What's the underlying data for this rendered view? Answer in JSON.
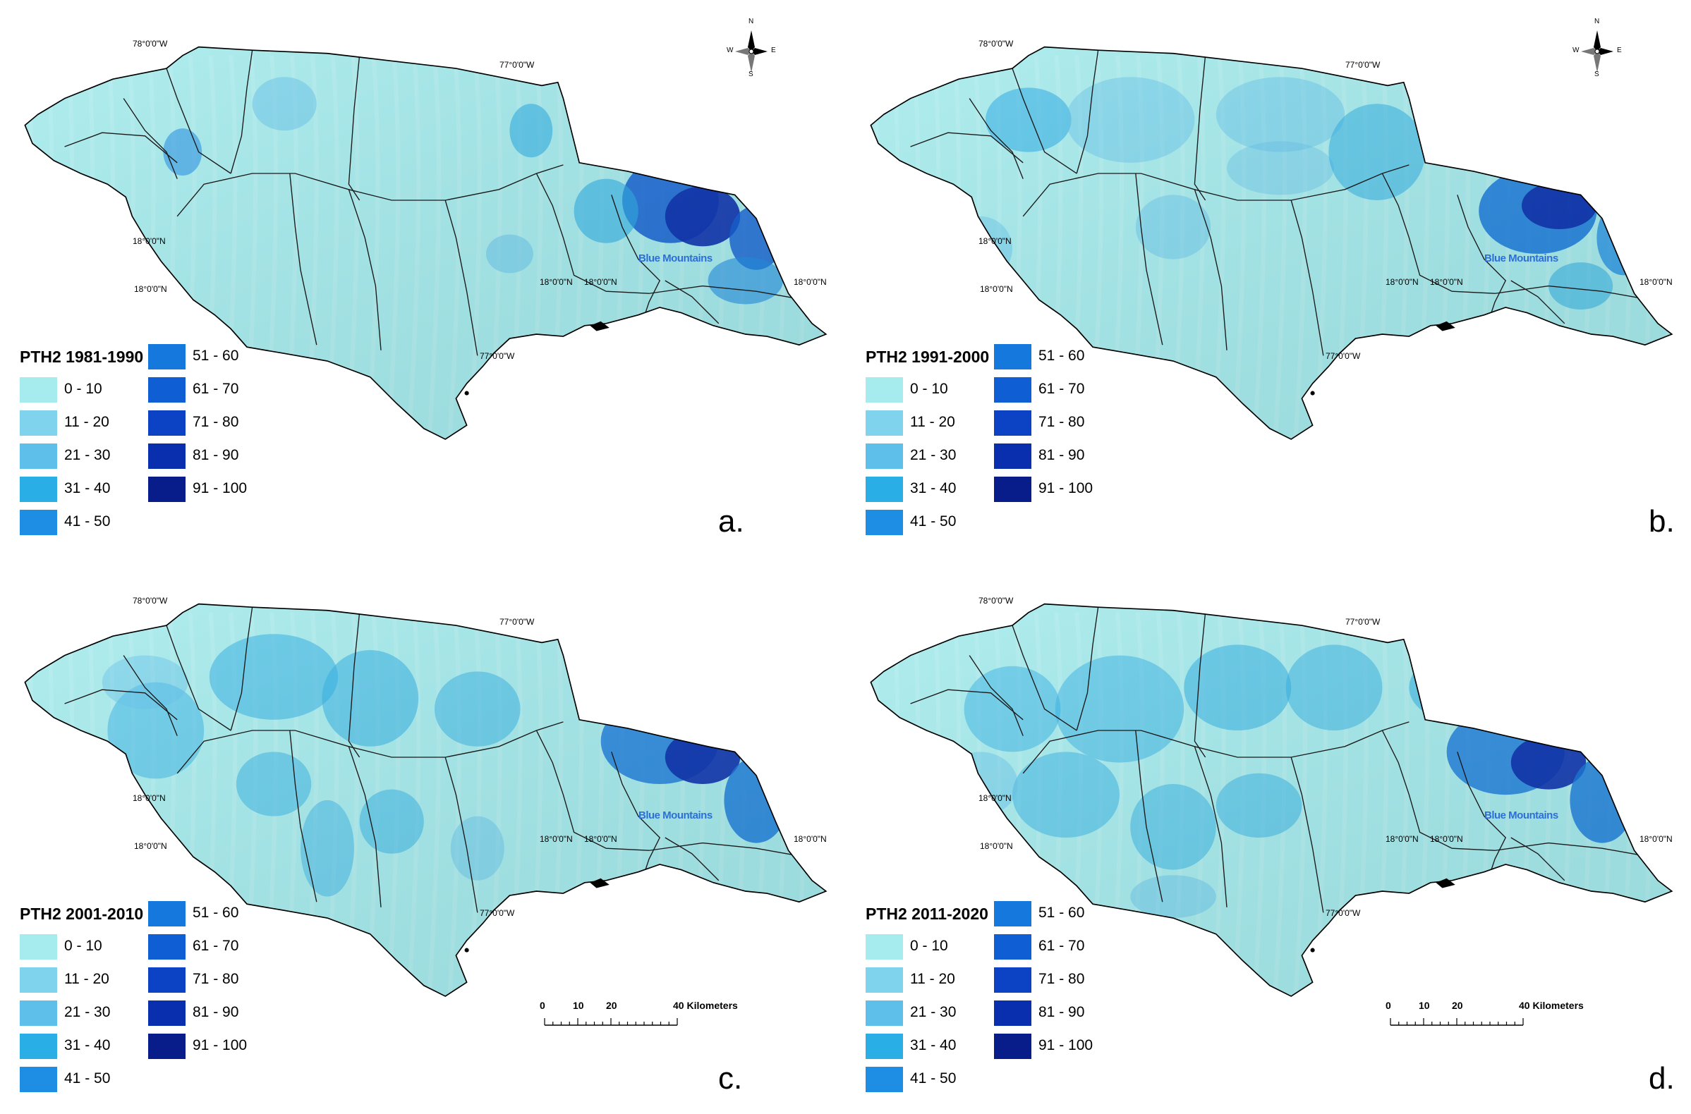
{
  "legend_classes": [
    {
      "range": "0 - 10",
      "color": "#a6ecee"
    },
    {
      "range": "11 - 20",
      "color": "#7fd3ec"
    },
    {
      "range": "21 - 30",
      "color": "#5ec0ea"
    },
    {
      "range": "31 - 40",
      "color": "#2aaee6"
    },
    {
      "range": "41 - 50",
      "color": "#1e8ee4"
    },
    {
      "range": "51 - 60",
      "color": "#1478dc"
    },
    {
      "range": "61 - 70",
      "color": "#0f5ed4"
    },
    {
      "range": "71 - 80",
      "color": "#0c43c4"
    },
    {
      "range": "81 - 90",
      "color": "#0a2fae"
    },
    {
      "range": "91 - 100",
      "color": "#081c8a"
    }
  ],
  "panels": [
    {
      "title": "PTH2 1981-1990",
      "letter": "a.",
      "scale_bar": false
    },
    {
      "title": "PTH2 1991-2000",
      "letter": "b.",
      "scale_bar": false
    },
    {
      "title": "PTH2 2001-2010",
      "letter": "c.",
      "scale_bar": true
    },
    {
      "title": "PTH2 2011-2020",
      "letter": "d.",
      "scale_bar": true
    }
  ],
  "coords": {
    "lon_west": "78°0'0\"W",
    "lon_east": "77°0'0\"W",
    "lat_left": "18°0'0\"N",
    "lat_mid": "18°0'0\"N",
    "lat_mid2": "18°0'0\"N",
    "lat_right": "18°0'0\"N",
    "lon_south": "77°0'0\"W"
  },
  "place_label": "Blue Mountains",
  "scale_bar": {
    "ticks": [
      "0",
      "10",
      "20",
      "40 Kilometers"
    ]
  },
  "compass": {
    "n": "N",
    "s": "S",
    "e": "E",
    "w": "W"
  }
}
